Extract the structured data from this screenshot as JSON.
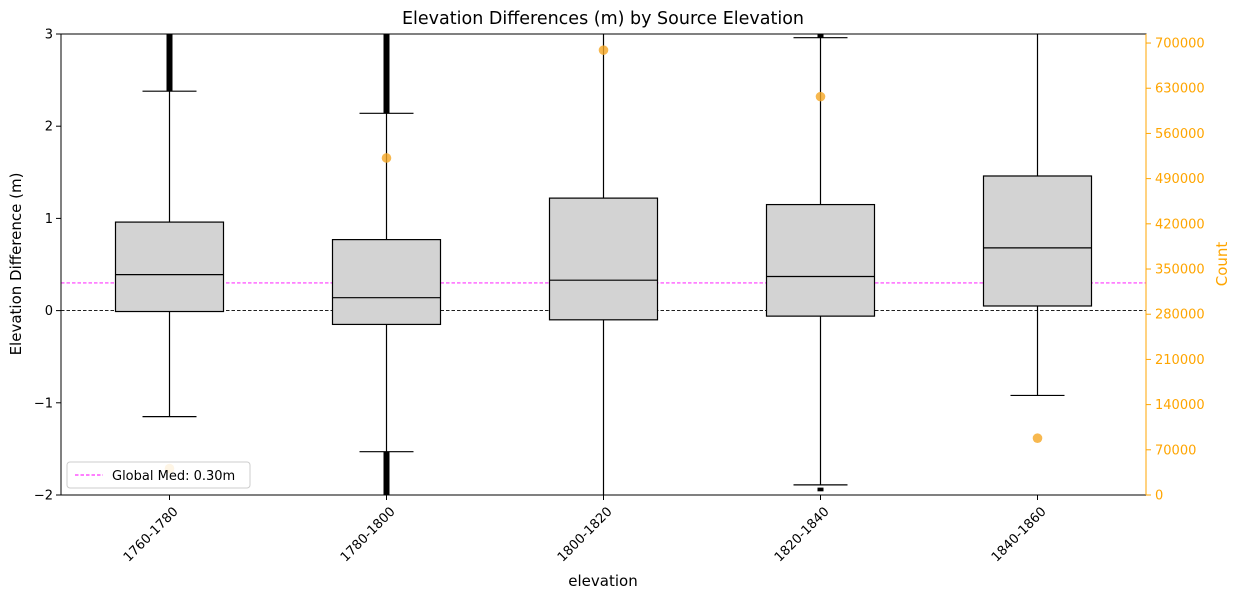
{
  "chart_data": {
    "type": "box",
    "title": "Elevation Differences (m) by Source Elevation",
    "xlabel": "elevation",
    "ylabel": "Elevation Difference (m)",
    "y2label": "Count",
    "ylim": [
      -2,
      3
    ],
    "y2lim": [
      0,
      714000
    ],
    "yticks": [
      "−2",
      "−1",
      "0",
      "1",
      "2",
      "3"
    ],
    "y2ticks": [
      "0",
      "70000",
      "140000",
      "210000",
      "280000",
      "350000",
      "420000",
      "490000",
      "560000",
      "630000",
      "700000"
    ],
    "categories": [
      "1760-1780",
      "1780-1800",
      "1800-1820",
      "1820-1840",
      "1840-1860"
    ],
    "boxes": [
      {
        "q1": -0.01,
        "median": 0.39,
        "q3": 0.96,
        "whisker_low": -1.15,
        "whisker_high": 2.38,
        "outliers_low": null,
        "outliers_high": [
          2.38,
          3
        ]
      },
      {
        "q1": -0.15,
        "median": 0.14,
        "q3": 0.77,
        "whisker_low": -1.53,
        "whisker_high": 2.14,
        "outliers_low": [
          -2,
          -1.53
        ],
        "outliers_high": [
          2.14,
          3
        ]
      },
      {
        "q1": -0.1,
        "median": 0.33,
        "q3": 1.22,
        "whisker_low": -2,
        "whisker_high": 3,
        "outliers_low": null,
        "outliers_high": null
      },
      {
        "q1": -0.06,
        "median": 0.37,
        "q3": 1.15,
        "whisker_low": -1.89,
        "whisker_high": 2.96,
        "outliers_low": [
          -1.96,
          -1.92
        ],
        "outliers_high": [
          2.96,
          3
        ]
      },
      {
        "q1": 0.05,
        "median": 0.68,
        "q3": 1.46,
        "whisker_low": -0.92,
        "whisker_high": 3,
        "outliers_low": null,
        "outliers_high": null
      }
    ],
    "counts": [
      41000,
      522000,
      689000,
      617000,
      88000
    ],
    "reference_lines": [
      {
        "y": 0,
        "style": "dashed",
        "color": "#000000"
      },
      {
        "y": 0.3,
        "style": "dashed",
        "color": "#ff00ff",
        "label": "Global Med: 0.30m"
      }
    ],
    "legend": {
      "placement": "lower-left",
      "entries": [
        "Global Med: 0.30m"
      ]
    },
    "colors": {
      "box_fill": "#d3d3d3",
      "count_points": "#f5a623",
      "right_axis": "#ffa500",
      "global_median": "#ff00ff"
    }
  }
}
